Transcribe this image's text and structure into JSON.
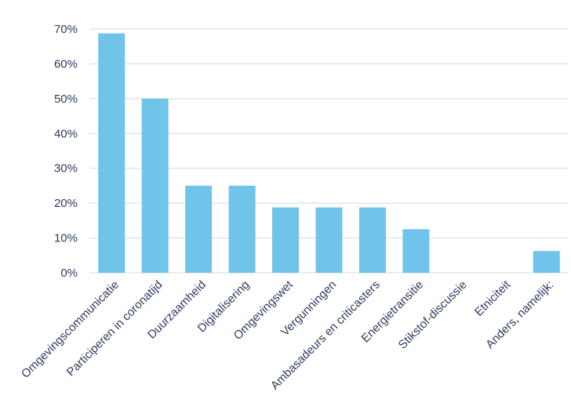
{
  "chart_data": {
    "type": "bar",
    "title": "",
    "xlabel": "",
    "ylabel": "",
    "categories": [
      "Omgevingscommunicatie",
      "Participeren in coronatijd",
      "Duurzaamheid",
      "Digitalisering",
      "Omgevingswet",
      "Vergunningen",
      "Ambasadeurs en criticasters",
      "Energietransitie",
      "Stikstof-discussie",
      "Etniciteit",
      "Anders, namelijk:"
    ],
    "values": [
      68.75,
      50,
      25,
      25,
      18.75,
      18.75,
      18.75,
      12.5,
      0,
      0,
      6.25
    ],
    "ylim": [
      0,
      70
    ],
    "yticks": [
      0,
      10,
      20,
      30,
      40,
      50,
      60,
      70
    ],
    "ytick_labels": [
      "0%",
      "10%",
      "20%",
      "30%",
      "40%",
      "50%",
      "60%",
      "70%"
    ],
    "grid": true,
    "legend": "none",
    "bar_color": "#70c4ea",
    "grid_color": "#d9d9d9",
    "text_color": "#2f3a5f"
  }
}
